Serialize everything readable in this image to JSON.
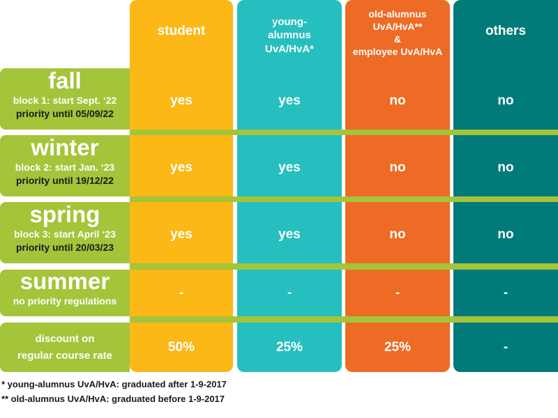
{
  "columns": {
    "student": [
      "student"
    ],
    "young": [
      "young-",
      "alumnus",
      "UvA/HvA*"
    ],
    "old": [
      "old-alumnus",
      "UvA/HvA**",
      "&",
      "employee UvA/HvA"
    ],
    "others": [
      "others"
    ]
  },
  "rows": {
    "fall": {
      "season": "fall",
      "block": "block 1: start Sept. ‘22",
      "priority": "priority until 05/09/22",
      "values": [
        "yes",
        "yes",
        "no",
        "no"
      ]
    },
    "winter": {
      "season": "winter",
      "block": "block 2: start Jan. ‘23",
      "priority": "priority until 19/12/22",
      "values": [
        "yes",
        "yes",
        "no",
        "no"
      ]
    },
    "spring": {
      "season": "spring",
      "block": "block 3: start April ‘23",
      "priority": "priority until 20/03/23",
      "values": [
        "yes",
        "yes",
        "no",
        "no"
      ]
    },
    "summer": {
      "season": "summer",
      "block": "no priority regulations",
      "values": [
        "-",
        "-",
        "-",
        "-"
      ]
    },
    "discount": {
      "label": [
        "discount on",
        "regular course rate"
      ],
      "values": [
        "50%",
        "25%",
        "25%",
        "-"
      ]
    }
  },
  "footnotes": [
    "* young-alumnus UvA/HvA: graduated after 1-9-2017",
    "** old-alumnus UvA/HvA: graduated before 1-9-2017"
  ],
  "colors": {
    "student": "#fbb817",
    "young": "#26bfbf",
    "old": "#ed6b24",
    "others": "#007b7a",
    "label_green": "#a4c43a"
  }
}
